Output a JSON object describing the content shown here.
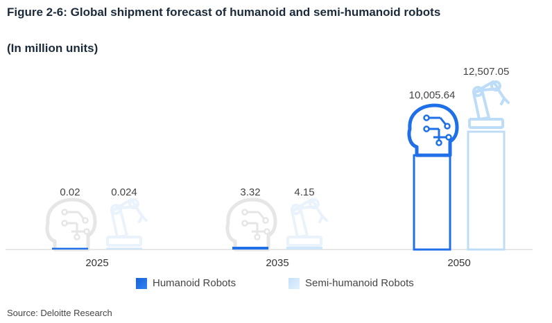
{
  "header": {
    "title": "Figure 2-6: Global shipment forecast of humanoid and semi-humanoid robots",
    "subtitle": "(In million units)"
  },
  "chart_data": {
    "type": "bar",
    "categories": [
      "2025",
      "2035",
      "2050"
    ],
    "series": [
      {
        "name": "Humanoid Robots",
        "values": [
          0.02,
          3.32,
          10005.64
        ],
        "labels": [
          "0.02",
          "3.32",
          "10,005.64"
        ],
        "color": "#1e6fe8",
        "icon": "humanoid-head-icon"
      },
      {
        "name": "Semi-humanoid Robots",
        "values": [
          0.024,
          4.15,
          12507.05
        ],
        "labels": [
          "0.024",
          "4.15",
          "12,507.05"
        ],
        "color": "#cfe6fb",
        "icon": "robot-arm-icon"
      }
    ],
    "ylim": [
      0,
      12507.05
    ],
    "grid": false,
    "legend_position": "bottom"
  },
  "footer": {
    "source": "Source: Deloitte Research"
  }
}
